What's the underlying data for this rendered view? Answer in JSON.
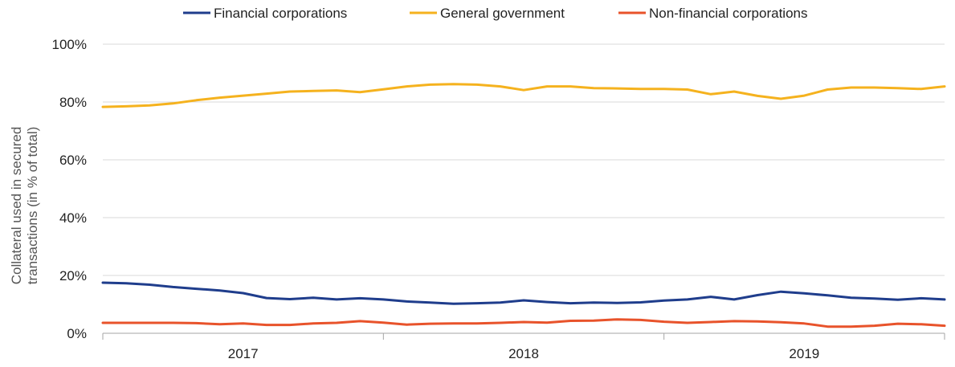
{
  "chart_data": {
    "type": "line",
    "title": "",
    "xlabel": "",
    "ylabel_lines": [
      "Collateral used in secured",
      "transactions (in % of total)"
    ],
    "y_tick_labels": [
      "0%",
      "20%",
      "40%",
      "60%",
      "80%",
      "100%"
    ],
    "y_tick_values": [
      0,
      20,
      40,
      60,
      80,
      100
    ],
    "ylim": [
      0,
      100
    ],
    "xlim": [
      "2016-07",
      "2019-07"
    ],
    "x_tick_labels": [
      "2017",
      "2018",
      "2019"
    ],
    "x_tick_positions": [
      "2017-01",
      "2018-01",
      "2019-01"
    ],
    "x_boundaries": [
      "2016-07",
      "2017-07",
      "2018-07",
      "2019-07"
    ],
    "grid": true,
    "legend": "top",
    "x": [
      "2016-07",
      "2016-08",
      "2016-09",
      "2016-10",
      "2016-11",
      "2016-12",
      "2017-01",
      "2017-02",
      "2017-03",
      "2017-04",
      "2017-05",
      "2017-06",
      "2017-07",
      "2017-08",
      "2017-09",
      "2017-10",
      "2017-11",
      "2017-12",
      "2018-01",
      "2018-02",
      "2018-03",
      "2018-04",
      "2018-05",
      "2018-06",
      "2018-07",
      "2018-08",
      "2018-09",
      "2018-10",
      "2018-11",
      "2018-12",
      "2019-01",
      "2019-02",
      "2019-03",
      "2019-04",
      "2019-05",
      "2019-06",
      "2019-07"
    ],
    "series": [
      {
        "name": "Financial corporations",
        "color": "#1f3d8c",
        "values": [
          17.5,
          17.3,
          16.8,
          16.0,
          15.4,
          14.8,
          13.9,
          12.2,
          11.8,
          12.3,
          11.7,
          12.1,
          11.7,
          11.0,
          10.6,
          10.2,
          10.4,
          10.6,
          11.4,
          10.8,
          10.4,
          10.6,
          10.5,
          10.7,
          11.3,
          11.7,
          12.6,
          11.7,
          13.2,
          14.4,
          13.8,
          13.1,
          12.3,
          12.0,
          11.6,
          12.1,
          11.7
        ]
      },
      {
        "name": "General government",
        "color": "#f5b21e",
        "values": [
          78.3,
          78.5,
          78.8,
          79.5,
          80.6,
          81.5,
          82.2,
          82.9,
          83.6,
          83.8,
          84.0,
          83.4,
          84.4,
          85.4,
          86.0,
          86.2,
          86.0,
          85.4,
          84.1,
          85.4,
          85.4,
          84.8,
          84.7,
          84.5,
          84.5,
          84.3,
          82.7,
          83.6,
          82.1,
          81.1,
          82.2,
          84.3,
          85.0,
          85.0,
          84.8,
          84.5,
          85.4
        ]
      },
      {
        "name": "Non-financial corporations",
        "color": "#e8532b",
        "values": [
          3.6,
          3.6,
          3.6,
          3.6,
          3.5,
          3.1,
          3.4,
          2.9,
          2.9,
          3.4,
          3.6,
          4.2,
          3.7,
          3.0,
          3.3,
          3.4,
          3.4,
          3.6,
          3.9,
          3.7,
          4.3,
          4.4,
          4.8,
          4.6,
          4.0,
          3.6,
          3.9,
          4.2,
          4.1,
          3.8,
          3.4,
          2.3,
          2.3,
          2.6,
          3.3,
          3.1,
          2.6
        ]
      }
    ]
  }
}
